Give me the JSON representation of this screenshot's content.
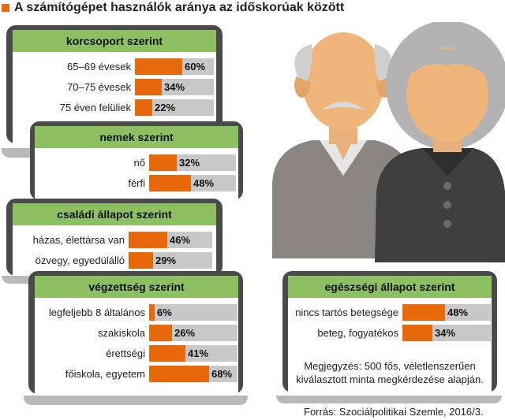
{
  "title": "A számítógépet használók aránya az időskorúak között",
  "colors": {
    "accent": "#e8690c",
    "header": "#8dc063",
    "track": "#c8c8c8",
    "frame": "#4a4a4a"
  },
  "chart_data": [
    {
      "type": "bar",
      "title": "korcsoport szerint",
      "categories": [
        "65–69 évesek",
        "70–75 évesek",
        "75 éven felüliek"
      ],
      "values": [
        60,
        34,
        22
      ],
      "value_labels": [
        "60%",
        "34%",
        "22%"
      ],
      "xlim": [
        0,
        100
      ]
    },
    {
      "type": "bar",
      "title": "nemek szerint",
      "categories": [
        "nő",
        "férfi"
      ],
      "values": [
        32,
        48
      ],
      "value_labels": [
        "32%",
        "48%"
      ],
      "xlim": [
        0,
        100
      ]
    },
    {
      "type": "bar",
      "title": "családi állapot szerint",
      "categories": [
        "házas, élettársa van",
        "özvegy, egyedülálló"
      ],
      "values": [
        46,
        29
      ],
      "value_labels": [
        "46%",
        "29%"
      ],
      "xlim": [
        0,
        100
      ]
    },
    {
      "type": "bar",
      "title": "végzettség szerint",
      "categories": [
        "legfeljebb 8 általános",
        "szakiskola",
        "érettségi",
        "főiskola, egyetem"
      ],
      "values": [
        6,
        26,
        41,
        68
      ],
      "value_labels": [
        "6%",
        "26%",
        "41%",
        "68%"
      ],
      "xlim": [
        0,
        100
      ]
    },
    {
      "type": "bar",
      "title": "egészségi állapot szerint",
      "categories": [
        "nincs tartós betegsége",
        "beteg, fogyatékos"
      ],
      "values": [
        48,
        34
      ],
      "value_labels": [
        "48%",
        "34%"
      ],
      "xlim": [
        0,
        100
      ]
    }
  ],
  "note": "Megjegyzés: 500 fős, véletlenszerűen kiválasztott minta megkérdezése alapján.",
  "source": "Forrás: Szociálpolitikai Szemle, 2016/3."
}
